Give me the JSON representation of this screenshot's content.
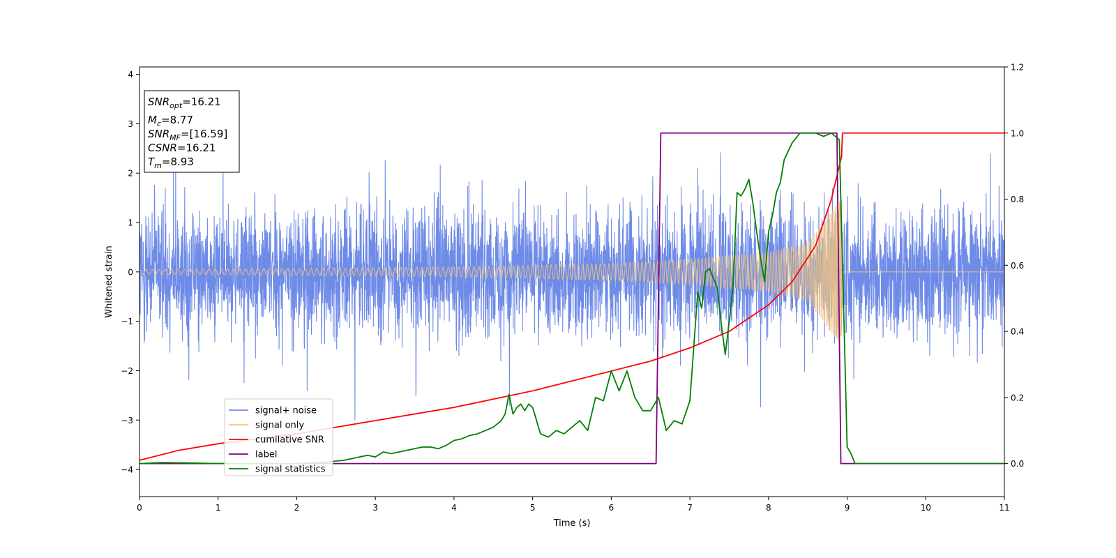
{
  "chart_data": {
    "type": "line",
    "xlabel": "Time (s)",
    "ylabel": "Whitened strain",
    "xlim": [
      0,
      11
    ],
    "ylim_left": [
      -4.55,
      4.15
    ],
    "ylim_right": [
      -0.1,
      1.2
    ],
    "x_ticks": [
      0,
      1,
      2,
      3,
      4,
      5,
      6,
      7,
      8,
      9,
      10,
      11
    ],
    "y_ticks_left": [
      -4,
      -3,
      -2,
      -1,
      0,
      1,
      2,
      3,
      4
    ],
    "y_ticks_right": [
      0.0,
      0.2,
      0.4,
      0.6,
      0.8,
      1.0,
      1.2
    ],
    "grid": false,
    "legend_position": "lower-left",
    "annotation_box": [
      {
        "var": "SNR",
        "sub": "opt",
        "value": "=16.21"
      },
      {
        "var": "M",
        "sub": "c",
        "value": "=8.77"
      },
      {
        "var": "SNR",
        "sub": "MF",
        "value": "=[16.59]"
      },
      {
        "var": "CSNR",
        "sub": "",
        "value": "=16.21"
      },
      {
        "var": "T",
        "sub": "m",
        "value": "=8.93"
      }
    ],
    "series": [
      {
        "name": "signal+ noise",
        "axis": "left",
        "color": "#6f8be8",
        "description": "whitened noise, amplitude roughly between -3 and +3.8, spanning 0 to 11 s"
      },
      {
        "name": "signal only",
        "axis": "left",
        "color": "#f5c57a",
        "envelope": {
          "x": [
            0,
            2,
            4,
            6,
            7,
            8,
            8.5,
            8.93,
            8.94,
            11
          ],
          "amp": [
            0.05,
            0.07,
            0.1,
            0.17,
            0.26,
            0.4,
            0.6,
            1.5,
            0,
            0
          ]
        }
      },
      {
        "name": "cumilative SNR",
        "axis": "right",
        "color": "#ff0000",
        "x": [
          0,
          0.5,
          1,
          2,
          3,
          4,
          5,
          6,
          6.5,
          7,
          7.5,
          8,
          8.3,
          8.6,
          8.8,
          8.93,
          8.94,
          11
        ],
        "y": [
          0.01,
          0.04,
          0.06,
          0.09,
          0.13,
          0.17,
          0.22,
          0.28,
          0.31,
          0.35,
          0.4,
          0.48,
          0.55,
          0.66,
          0.8,
          0.93,
          1.0,
          1.0
        ]
      },
      {
        "name": "label",
        "axis": "right",
        "color": "#800080",
        "x": [
          0,
          6.57,
          6.63,
          8.87,
          8.92,
          11
        ],
        "y": [
          0,
          0,
          1,
          1,
          0,
          0
        ]
      },
      {
        "name": "signal statistics",
        "axis": "right",
        "color": "#008000",
        "x": [
          0,
          0.3,
          0.6,
          1,
          2,
          2.4,
          2.6,
          2.8,
          2.9,
          3,
          3.1,
          3.2,
          3.4,
          3.6,
          3.7,
          3.8,
          3.9,
          4,
          4.1,
          4.2,
          4.3,
          4.4,
          4.5,
          4.6,
          4.65,
          4.7,
          4.75,
          4.8,
          4.85,
          4.9,
          4.95,
          5,
          5.1,
          5.2,
          5.3,
          5.4,
          5.5,
          5.6,
          5.7,
          5.8,
          5.9,
          6,
          6.1,
          6.2,
          6.3,
          6.4,
          6.5,
          6.6,
          6.7,
          6.8,
          6.9,
          7,
          7.1,
          7.15,
          7.2,
          7.25,
          7.3,
          7.35,
          7.4,
          7.45,
          7.5,
          7.55,
          7.6,
          7.65,
          7.7,
          7.75,
          7.8,
          7.85,
          7.9,
          7.95,
          8,
          8.05,
          8.1,
          8.15,
          8.2,
          8.3,
          8.4,
          8.5,
          8.6,
          8.7,
          8.8,
          8.85,
          8.9,
          8.95,
          9,
          9.05,
          9.1,
          9.2,
          9.5,
          11
        ],
        "y": [
          0.0,
          0.003,
          0.002,
          0.0,
          0.0,
          0.005,
          0.01,
          0.02,
          0.025,
          0.02,
          0.035,
          0.03,
          0.04,
          0.05,
          0.05,
          0.045,
          0.055,
          0.07,
          0.075,
          0.085,
          0.09,
          0.1,
          0.11,
          0.13,
          0.15,
          0.21,
          0.15,
          0.17,
          0.18,
          0.16,
          0.18,
          0.17,
          0.09,
          0.08,
          0.1,
          0.09,
          0.11,
          0.13,
          0.1,
          0.2,
          0.19,
          0.28,
          0.22,
          0.28,
          0.2,
          0.16,
          0.16,
          0.2,
          0.1,
          0.13,
          0.12,
          0.19,
          0.52,
          0.47,
          0.58,
          0.59,
          0.56,
          0.53,
          0.42,
          0.33,
          0.43,
          0.54,
          0.82,
          0.81,
          0.83,
          0.86,
          0.79,
          0.7,
          0.62,
          0.55,
          0.7,
          0.75,
          0.82,
          0.85,
          0.92,
          0.97,
          1.0,
          1.0,
          1.0,
          0.99,
          1.0,
          0.99,
          0.98,
          0.52,
          0.05,
          0.03,
          0.0,
          0.0,
          0.0,
          0.0
        ]
      }
    ]
  }
}
